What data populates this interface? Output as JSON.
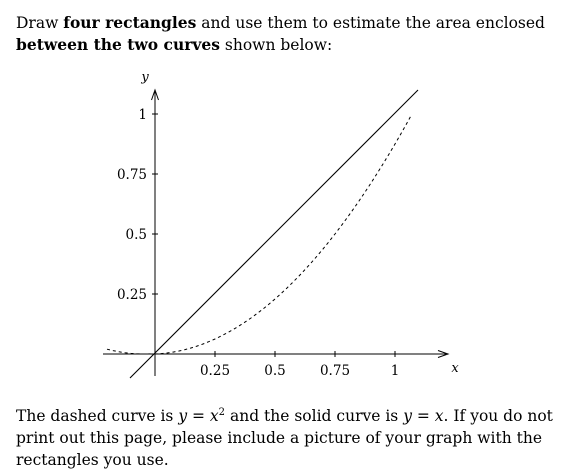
{
  "prompt": {
    "p1": "Draw ",
    "b1": "four rectangles",
    "p2": " and use them to estimate the area enclosed ",
    "b2": "between the two curves",
    "p3": " shown below:"
  },
  "axes": {
    "x_label": "x",
    "y_label": "y",
    "x_ticks": [
      "0.25",
      "0.5",
      "0.75",
      "1"
    ],
    "y_ticks": [
      "0.25",
      "0.5",
      "0.75",
      "1"
    ]
  },
  "curves": {
    "solid": {
      "equation": "y = x",
      "style": "solid",
      "color": "#000000"
    },
    "dashed": {
      "equation": "y = x^2",
      "style": "dashed",
      "color": "#000000"
    }
  },
  "footer": {
    "t1": "The dashed curve is ",
    "eq1_lhs": "y",
    "eq1_mid": " = ",
    "eq1_base": "x",
    "eq1_exp": "2",
    "t2": " and the solid curve is ",
    "eq2_lhs": "y",
    "eq2_mid": " = ",
    "eq2_rhs": "x",
    "t3": ". If you do not print out this page, please include a picture of your graph with the rectangles you use."
  }
}
